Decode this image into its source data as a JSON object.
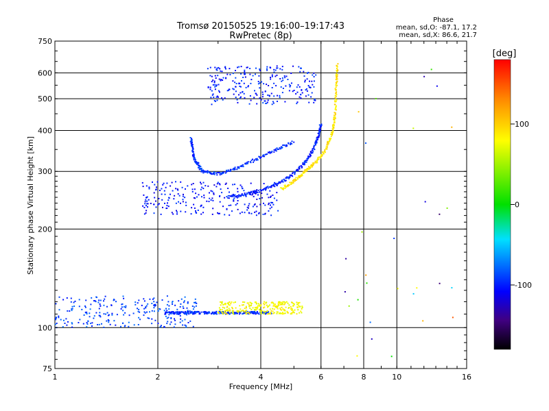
{
  "chart_data": {
    "type": "scatter",
    "title": "Tromsø 20150525 19:16:00–19:17:43",
    "subtitle": "RwPretec (8p)",
    "xlabel": "Frequency [MHz]",
    "ylabel": "Stationary phase Virtual Height [km]",
    "x_scale": "log",
    "y_scale": "log",
    "xlim": [
      1,
      16
    ],
    "ylim": [
      75,
      750
    ],
    "x_ticks": [
      1,
      2,
      4,
      6,
      8,
      10,
      16
    ],
    "y_ticks": [
      75,
      100,
      200,
      300,
      400,
      500,
      600,
      750
    ],
    "grid": true,
    "stats": {
      "heading": "Phase",
      "line1": "mean, sd,O:  -87.1, 17.2",
      "line2": "mean, sd,X:  86.6, 21.7"
    },
    "colorbar": {
      "label": "[deg]",
      "range": [
        -180,
        180
      ],
      "ticks": [
        100,
        0,
        -100
      ],
      "colors": [
        "#ff0000",
        "#ff8c00",
        "#ffff00",
        "#00e000",
        "#00e0ff",
        "#0000ff",
        "#400080",
        "#000000"
      ]
    },
    "series": [
      {
        "id": "o-low-f-trace",
        "phase": -90,
        "x_range": [
          1.0,
          2.6
        ],
        "y_range": [
          100,
          125
        ]
      },
      {
        "id": "o-E-layer-trace",
        "phase": -95,
        "x_range": [
          2.1,
          4.3
        ],
        "y_range": [
          110,
          112
        ]
      },
      {
        "id": "x-E-layer-trace",
        "phase": 80,
        "x_range": [
          3.0,
          5.3
        ],
        "y_range": [
          110,
          120
        ]
      },
      {
        "id": "o-F2-trace",
        "phase": -100,
        "points": [
          [
            3.2,
            250
          ],
          [
            3.6,
            255
          ],
          [
            4.0,
            262
          ],
          [
            4.5,
            275
          ],
          [
            5.0,
            295
          ],
          [
            5.4,
            320
          ],
          [
            5.7,
            350
          ],
          [
            5.9,
            385
          ],
          [
            6.0,
            420
          ]
        ]
      },
      {
        "id": "x-F2-trace",
        "phase": 90,
        "points": [
          [
            4.6,
            265
          ],
          [
            5.0,
            280
          ],
          [
            5.4,
            300
          ],
          [
            5.8,
            320
          ],
          [
            6.2,
            350
          ],
          [
            6.5,
            400
          ],
          [
            6.6,
            450
          ],
          [
            6.65,
            550
          ],
          [
            6.7,
            640
          ]
        ]
      },
      {
        "id": "o-2hop-trace",
        "phase": -95,
        "points": [
          [
            2.5,
            380
          ],
          [
            2.55,
            330
          ],
          [
            2.7,
            300
          ],
          [
            3.0,
            295
          ],
          [
            3.5,
            310
          ],
          [
            4.2,
            340
          ],
          [
            5.0,
            370
          ]
        ]
      },
      {
        "id": "spread-F-cluster",
        "phase": -105,
        "x_range": [
          1.8,
          4.5
        ],
        "y_range": [
          220,
          280
        ]
      },
      {
        "id": "upper-returns",
        "phase": -100,
        "x_range": [
          2.8,
          5.8
        ],
        "y_range": [
          480,
          630
        ]
      }
    ]
  }
}
